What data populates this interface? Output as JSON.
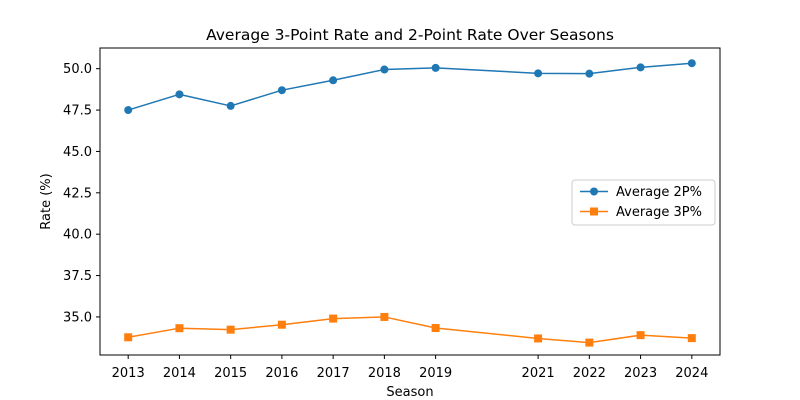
{
  "chart_data": {
    "type": "line",
    "title": "Average 3-Point Rate and 2-Point Rate Over Seasons",
    "xlabel": "Season",
    "ylabel": "Rate (%)",
    "x": [
      2013,
      2014,
      2015,
      2016,
      2017,
      2018,
      2019,
      2021,
      2022,
      2023,
      2024
    ],
    "x_ticks": [
      2013,
      2014,
      2015,
      2016,
      2017,
      2018,
      2019,
      2021,
      2022,
      2023,
      2024
    ],
    "xlim": [
      2012.45,
      2024.55
    ],
    "y_ticks": [
      35.0,
      37.5,
      40.0,
      42.5,
      45.0,
      47.5,
      50.0
    ],
    "y_tick_labels": [
      "35.0",
      "37.5",
      "40.0",
      "42.5",
      "45.0",
      "47.5",
      "50.0"
    ],
    "ylim": [
      32.7,
      51.25
    ],
    "grid": false,
    "legend_position": "center-right",
    "series": [
      {
        "name": "Average 2P%",
        "color": "#1f77b4",
        "marker": "circle",
        "values": [
          47.5,
          48.45,
          47.75,
          48.7,
          49.3,
          49.95,
          50.05,
          49.72,
          49.7,
          50.08,
          50.33
        ]
      },
      {
        "name": "Average 3P%",
        "color": "#ff7f0e",
        "marker": "square",
        "values": [
          33.77,
          34.32,
          34.23,
          34.53,
          34.9,
          35.0,
          34.33,
          33.7,
          33.45,
          33.9,
          33.72
        ]
      }
    ]
  }
}
